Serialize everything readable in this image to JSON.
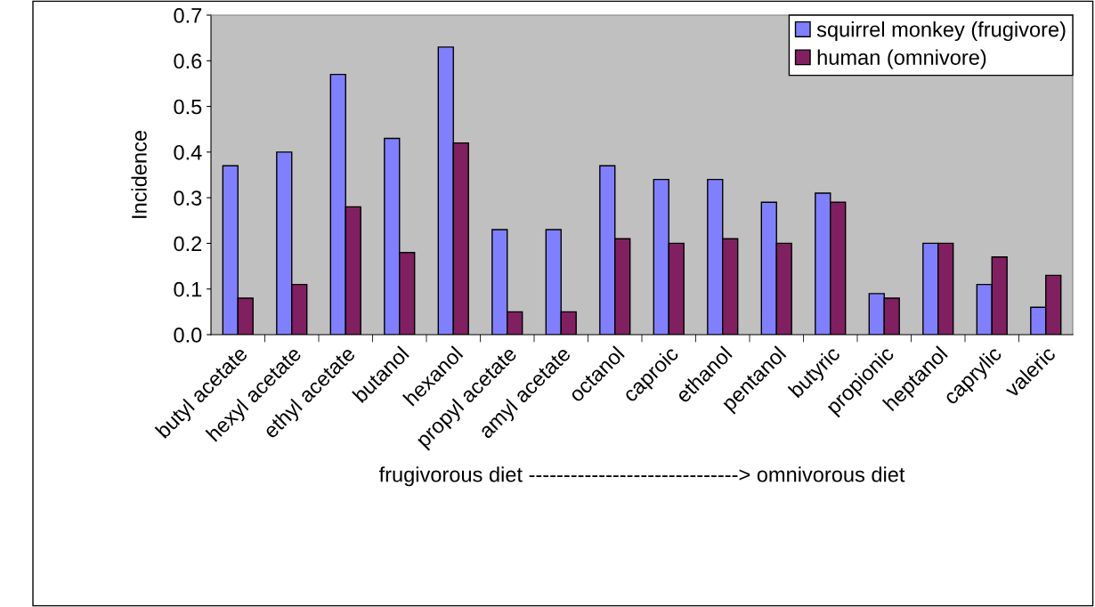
{
  "chart_data": {
    "type": "bar",
    "ylabel": "Incidence",
    "xlabel": "frugivorous diet ------------------------------> omnivorous diet",
    "categories": [
      "butyl acetate",
      "hexyl acetate",
      "ethyl acetate",
      "butanol",
      "hexanol",
      "propyl acetate",
      "amyl acetate",
      "octanol",
      "caproic",
      "ethanol",
      "pentanol",
      "butyric",
      "propionic",
      "heptanol",
      "caprylic",
      "valeric"
    ],
    "series": [
      {
        "name": "squirrel monkey (frugivore)",
        "color": "#8080ff",
        "values": [
          0.37,
          0.4,
          0.57,
          0.43,
          0.63,
          0.23,
          0.23,
          0.37,
          0.34,
          0.34,
          0.29,
          0.31,
          0.09,
          0.2,
          0.11,
          0.06
        ]
      },
      {
        "name": "human (omnivore)",
        "color": "#802060",
        "values": [
          0.08,
          0.11,
          0.28,
          0.18,
          0.42,
          0.05,
          0.05,
          0.21,
          0.2,
          0.21,
          0.2,
          0.29,
          0.08,
          0.2,
          0.17,
          0.13
        ]
      }
    ],
    "ylim": [
      0,
      0.7
    ],
    "yticks": [
      {
        "value": 0,
        "label": "0.0"
      },
      0.1,
      0.2,
      0.3,
      0.4,
      0.5,
      0.6,
      0.7
    ],
    "grid": false,
    "legend": "top right"
  }
}
